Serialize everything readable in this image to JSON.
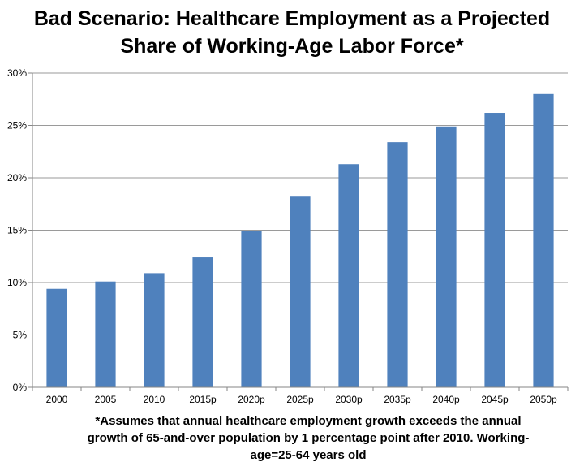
{
  "title_line1": "Bad Scenario: Healthcare Employment as a Projected",
  "title_line2": "Share of Working-Age Labor Force*",
  "footnote": {
    "line1": "*Assumes that annual healthcare employment growth exceeds the annual",
    "line2": "growth of 65-and-over population by 1 percentage point after 2010.  Working-",
    "line3": "age=25-64 years old"
  },
  "colors": {
    "bar": "#4F81BD",
    "grid": "#9a9a9a",
    "axis": "#868686"
  },
  "chart_data": {
    "type": "bar",
    "title": "Bad Scenario: Healthcare Employment as a Projected Share of Working-Age Labor Force*",
    "categories": [
      "2000",
      "2005",
      "2010",
      "2015p",
      "2020p",
      "2025p",
      "2030p",
      "2035p",
      "2040p",
      "2045p",
      "2050p"
    ],
    "values": [
      9.4,
      10.1,
      10.9,
      12.4,
      14.9,
      18.2,
      21.3,
      23.4,
      24.9,
      26.2,
      28.0
    ],
    "value_unit": "%",
    "ylim": [
      0,
      30
    ],
    "yticks": [
      "0%",
      "5%",
      "10%",
      "15%",
      "20%",
      "25%",
      "30%"
    ],
    "ytick_values": [
      0,
      5,
      10,
      15,
      20,
      25,
      30
    ],
    "xlabel": "",
    "ylabel": "",
    "grid": true,
    "legend": "none"
  }
}
